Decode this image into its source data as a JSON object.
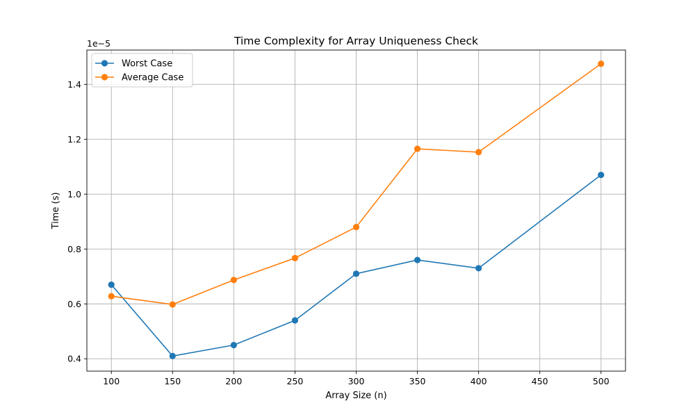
{
  "chart_data": {
    "type": "line",
    "title": "Time Complexity for Array Uniqueness Check",
    "xlabel": "Array Size (n)",
    "ylabel": "Time (s)",
    "y_offset_label": "1e−5",
    "x": [
      100,
      150,
      200,
      250,
      300,
      350,
      400,
      500
    ],
    "xlim": [
      80,
      520
    ],
    "ylim": [
      0.355,
      1.525
    ],
    "x_ticks": [
      100,
      150,
      200,
      250,
      300,
      350,
      400,
      450,
      500
    ],
    "x_tick_labels": [
      "100",
      "150",
      "200",
      "250",
      "300",
      "350",
      "400",
      "450",
      "500"
    ],
    "y_ticks": [
      0.4,
      0.6,
      0.8,
      1.0,
      1.2,
      1.4
    ],
    "y_tick_labels": [
      "0.4",
      "0.6",
      "0.8",
      "1.0",
      "1.2",
      "1.4"
    ],
    "grid": true,
    "legend_position": "top-left",
    "series": [
      {
        "name": "Worst Case",
        "color": "#1f77b4",
        "marker": "circle",
        "values": [
          0.67,
          0.41,
          0.45,
          0.54,
          0.71,
          0.76,
          0.73,
          1.07
        ]
      },
      {
        "name": "Average Case",
        "color": "#ff7f0e",
        "marker": "circle",
        "values": [
          0.628,
          0.598,
          0.687,
          0.767,
          0.88,
          1.165,
          1.153,
          1.475
        ]
      }
    ]
  }
}
